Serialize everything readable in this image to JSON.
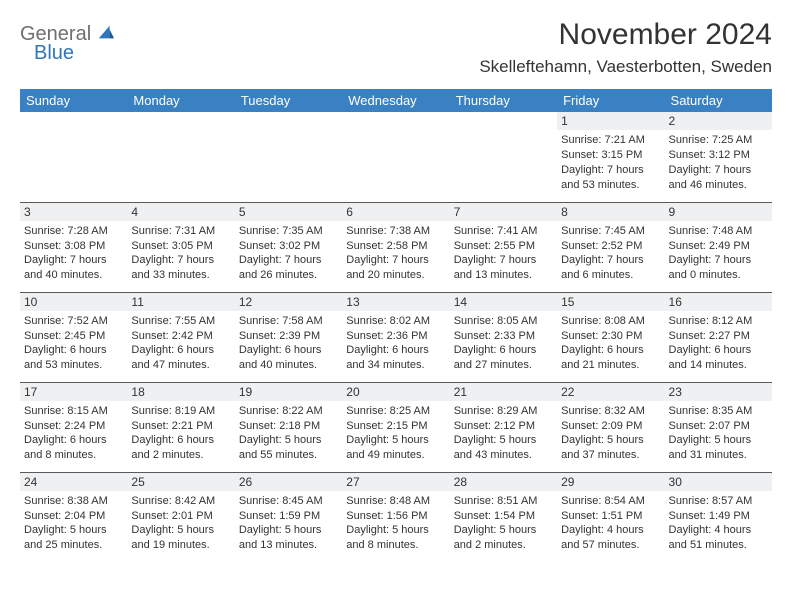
{
  "brand": {
    "word1": "General",
    "word2": "Blue"
  },
  "colors": {
    "header_bg": "#3a81c3",
    "header_text": "#ffffff",
    "daynum_bg": "#eef0f1",
    "border": "#5a5a5a",
    "logo_gray": "#6f6f6f",
    "logo_blue": "#2f76bb",
    "text": "#333333",
    "page_bg": "#ffffff"
  },
  "title": "November 2024",
  "location": "Skelleftehamn, Vaesterbotten, Sweden",
  "day_headers": [
    "Sunday",
    "Monday",
    "Tuesday",
    "Wednesday",
    "Thursday",
    "Friday",
    "Saturday"
  ],
  "weeks": [
    [
      {
        "empty": true
      },
      {
        "empty": true
      },
      {
        "empty": true
      },
      {
        "empty": true
      },
      {
        "empty": true
      },
      {
        "day": "1",
        "sunrise": "Sunrise: 7:21 AM",
        "sunset": "Sunset: 3:15 PM",
        "daylight": "Daylight: 7 hours and 53 minutes."
      },
      {
        "day": "2",
        "sunrise": "Sunrise: 7:25 AM",
        "sunset": "Sunset: 3:12 PM",
        "daylight": "Daylight: 7 hours and 46 minutes."
      }
    ],
    [
      {
        "day": "3",
        "sunrise": "Sunrise: 7:28 AM",
        "sunset": "Sunset: 3:08 PM",
        "daylight": "Daylight: 7 hours and 40 minutes."
      },
      {
        "day": "4",
        "sunrise": "Sunrise: 7:31 AM",
        "sunset": "Sunset: 3:05 PM",
        "daylight": "Daylight: 7 hours and 33 minutes."
      },
      {
        "day": "5",
        "sunrise": "Sunrise: 7:35 AM",
        "sunset": "Sunset: 3:02 PM",
        "daylight": "Daylight: 7 hours and 26 minutes."
      },
      {
        "day": "6",
        "sunrise": "Sunrise: 7:38 AM",
        "sunset": "Sunset: 2:58 PM",
        "daylight": "Daylight: 7 hours and 20 minutes."
      },
      {
        "day": "7",
        "sunrise": "Sunrise: 7:41 AM",
        "sunset": "Sunset: 2:55 PM",
        "daylight": "Daylight: 7 hours and 13 minutes."
      },
      {
        "day": "8",
        "sunrise": "Sunrise: 7:45 AM",
        "sunset": "Sunset: 2:52 PM",
        "daylight": "Daylight: 7 hours and 6 minutes."
      },
      {
        "day": "9",
        "sunrise": "Sunrise: 7:48 AM",
        "sunset": "Sunset: 2:49 PM",
        "daylight": "Daylight: 7 hours and 0 minutes."
      }
    ],
    [
      {
        "day": "10",
        "sunrise": "Sunrise: 7:52 AM",
        "sunset": "Sunset: 2:45 PM",
        "daylight": "Daylight: 6 hours and 53 minutes."
      },
      {
        "day": "11",
        "sunrise": "Sunrise: 7:55 AM",
        "sunset": "Sunset: 2:42 PM",
        "daylight": "Daylight: 6 hours and 47 minutes."
      },
      {
        "day": "12",
        "sunrise": "Sunrise: 7:58 AM",
        "sunset": "Sunset: 2:39 PM",
        "daylight": "Daylight: 6 hours and 40 minutes."
      },
      {
        "day": "13",
        "sunrise": "Sunrise: 8:02 AM",
        "sunset": "Sunset: 2:36 PM",
        "daylight": "Daylight: 6 hours and 34 minutes."
      },
      {
        "day": "14",
        "sunrise": "Sunrise: 8:05 AM",
        "sunset": "Sunset: 2:33 PM",
        "daylight": "Daylight: 6 hours and 27 minutes."
      },
      {
        "day": "15",
        "sunrise": "Sunrise: 8:08 AM",
        "sunset": "Sunset: 2:30 PM",
        "daylight": "Daylight: 6 hours and 21 minutes."
      },
      {
        "day": "16",
        "sunrise": "Sunrise: 8:12 AM",
        "sunset": "Sunset: 2:27 PM",
        "daylight": "Daylight: 6 hours and 14 minutes."
      }
    ],
    [
      {
        "day": "17",
        "sunrise": "Sunrise: 8:15 AM",
        "sunset": "Sunset: 2:24 PM",
        "daylight": "Daylight: 6 hours and 8 minutes."
      },
      {
        "day": "18",
        "sunrise": "Sunrise: 8:19 AM",
        "sunset": "Sunset: 2:21 PM",
        "daylight": "Daylight: 6 hours and 2 minutes."
      },
      {
        "day": "19",
        "sunrise": "Sunrise: 8:22 AM",
        "sunset": "Sunset: 2:18 PM",
        "daylight": "Daylight: 5 hours and 55 minutes."
      },
      {
        "day": "20",
        "sunrise": "Sunrise: 8:25 AM",
        "sunset": "Sunset: 2:15 PM",
        "daylight": "Daylight: 5 hours and 49 minutes."
      },
      {
        "day": "21",
        "sunrise": "Sunrise: 8:29 AM",
        "sunset": "Sunset: 2:12 PM",
        "daylight": "Daylight: 5 hours and 43 minutes."
      },
      {
        "day": "22",
        "sunrise": "Sunrise: 8:32 AM",
        "sunset": "Sunset: 2:09 PM",
        "daylight": "Daylight: 5 hours and 37 minutes."
      },
      {
        "day": "23",
        "sunrise": "Sunrise: 8:35 AM",
        "sunset": "Sunset: 2:07 PM",
        "daylight": "Daylight: 5 hours and 31 minutes."
      }
    ],
    [
      {
        "day": "24",
        "sunrise": "Sunrise: 8:38 AM",
        "sunset": "Sunset: 2:04 PM",
        "daylight": "Daylight: 5 hours and 25 minutes."
      },
      {
        "day": "25",
        "sunrise": "Sunrise: 8:42 AM",
        "sunset": "Sunset: 2:01 PM",
        "daylight": "Daylight: 5 hours and 19 minutes."
      },
      {
        "day": "26",
        "sunrise": "Sunrise: 8:45 AM",
        "sunset": "Sunset: 1:59 PM",
        "daylight": "Daylight: 5 hours and 13 minutes."
      },
      {
        "day": "27",
        "sunrise": "Sunrise: 8:48 AM",
        "sunset": "Sunset: 1:56 PM",
        "daylight": "Daylight: 5 hours and 8 minutes."
      },
      {
        "day": "28",
        "sunrise": "Sunrise: 8:51 AM",
        "sunset": "Sunset: 1:54 PM",
        "daylight": "Daylight: 5 hours and 2 minutes."
      },
      {
        "day": "29",
        "sunrise": "Sunrise: 8:54 AM",
        "sunset": "Sunset: 1:51 PM",
        "daylight": "Daylight: 4 hours and 57 minutes."
      },
      {
        "day": "30",
        "sunrise": "Sunrise: 8:57 AM",
        "sunset": "Sunset: 1:49 PM",
        "daylight": "Daylight: 4 hours and 51 minutes."
      }
    ]
  ]
}
